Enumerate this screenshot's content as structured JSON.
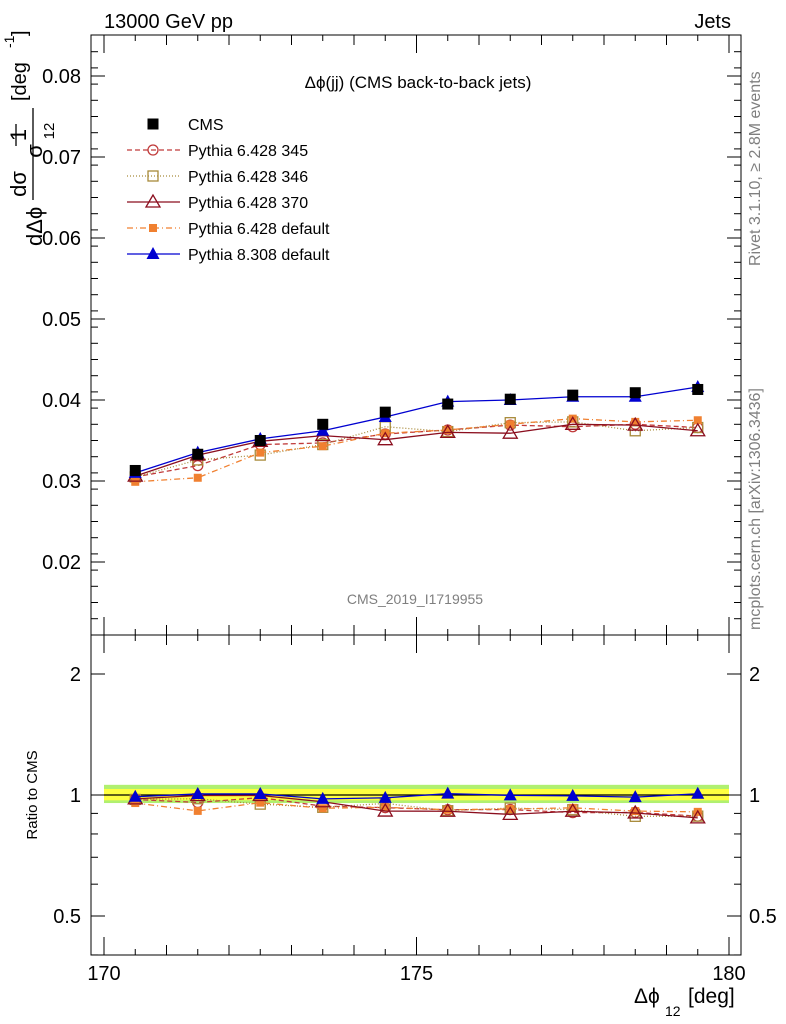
{
  "header": {
    "left": "13000 GeV pp",
    "right": "Jets"
  },
  "side_labels": {
    "rivet": "Rivet 3.1.10, ≥ 2.8M events",
    "mcplots": "mcplots.cern.ch [arXiv:1306.3436]"
  },
  "plot_title": "Δϕ(jj) (CMS back-to-back jets)",
  "watermark": "CMS_2019_I1719955",
  "ratio_ylabel": "Ratio to CMS",
  "colors": {
    "cms": "#000000",
    "p345": "#c03a3a",
    "p346": "#a88a3a",
    "p370": "#8b0e1e",
    "p6def": "#f08030",
    "p8def": "#0000d0",
    "band_inner": "#ffff40",
    "band_outer": "#b0f070"
  },
  "chart_data": {
    "type": "line",
    "x": [
      170.5,
      171.5,
      172.5,
      173.5,
      174.5,
      175.5,
      176.5,
      177.5,
      178.5,
      179.5
    ],
    "xlim": [
      170,
      180
    ],
    "x_ticks": [
      "170",
      "175",
      "180"
    ],
    "xlabel": "Δϕ",
    "xlabel_sub": "12",
    "xlabel_unit": "[deg]",
    "ylim": [
      0.012,
      0.085
    ],
    "y_ticks": [
      "0.02",
      "0.03",
      "0.04",
      "0.05",
      "0.06",
      "0.07",
      "0.08"
    ],
    "ylabel": {
      "prefix": "1",
      "sigma": "σ",
      "numerator": "dσ",
      "denominator": "dΔϕ",
      "sub": "12",
      "unit": "[deg",
      "unit_exp": "-1",
      "unit_close": "]"
    },
    "ratio_ylim": [
      0.34,
      2.3
    ],
    "ratio_y_ticks": [
      "0.5",
      "1",
      "2"
    ],
    "series": [
      {
        "name": "CMS",
        "key": "cms",
        "values": [
          0.0313,
          0.0333,
          0.035,
          0.037,
          0.0385,
          0.0395,
          0.0401,
          0.0406,
          0.0409,
          0.0413
        ],
        "dash": "",
        "marker": "square-filled"
      },
      {
        "name": "Pythia 6.428 345",
        "key": "p345",
        "values": [
          0.0305,
          0.0319,
          0.0345,
          0.0347,
          0.0358,
          0.0363,
          0.0369,
          0.0367,
          0.037,
          0.0366
        ],
        "dash": "5,3",
        "marker": "circle-open"
      },
      {
        "name": "Pythia 6.428 346",
        "key": "p346",
        "values": [
          0.0305,
          0.0326,
          0.0332,
          0.0345,
          0.0367,
          0.0361,
          0.0372,
          0.0373,
          0.0362,
          0.0366
        ],
        "dash": "1,2",
        "marker": "square-open"
      },
      {
        "name": "Pythia 6.428 370",
        "key": "p370",
        "values": [
          0.0306,
          0.0332,
          0.0349,
          0.0356,
          0.0351,
          0.036,
          0.0359,
          0.037,
          0.0369,
          0.0362
        ],
        "dash": "",
        "marker": "triangle-open"
      },
      {
        "name": "Pythia 6.428 default",
        "key": "p6def",
        "values": [
          0.0299,
          0.0304,
          0.0335,
          0.0343,
          0.0359,
          0.0363,
          0.037,
          0.0377,
          0.0373,
          0.0375
        ],
        "dash": "6,3,1,3",
        "marker": "square-filled-small"
      },
      {
        "name": "Pythia 8.308 default",
        "key": "p8def",
        "values": [
          0.031,
          0.0335,
          0.0352,
          0.0362,
          0.0379,
          0.0398,
          0.04,
          0.0404,
          0.0404,
          0.0416
        ],
        "dash": "",
        "marker": "triangle-filled"
      }
    ],
    "ratios": {
      "p345": [
        0.975,
        0.958,
        0.985,
        0.938,
        0.93,
        0.919,
        0.92,
        0.904,
        0.905,
        0.886
      ],
      "p346": [
        0.975,
        0.979,
        0.949,
        0.932,
        0.953,
        0.914,
        0.928,
        0.919,
        0.885,
        0.886
      ],
      "p370": [
        0.978,
        0.997,
        0.997,
        0.962,
        0.912,
        0.911,
        0.895,
        0.911,
        0.902,
        0.877
      ],
      "p6def": [
        0.955,
        0.913,
        0.957,
        0.927,
        0.932,
        0.919,
        0.923,
        0.929,
        0.912,
        0.908
      ],
      "p8def": [
        0.99,
        1.006,
        1.006,
        0.978,
        0.984,
        1.008,
        0.998,
        0.995,
        0.988,
        1.007
      ]
    },
    "legend_position": "top-left",
    "grid": false
  }
}
